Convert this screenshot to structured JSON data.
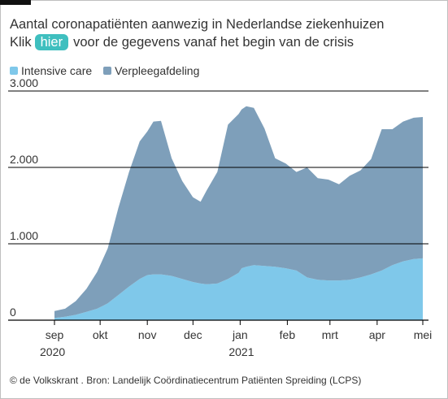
{
  "header": {
    "title": "Aantal coronapatiënten aanwezig in Nederlandse ziekenhuizen",
    "subtitle_before": "Klik",
    "link_label": "hier",
    "subtitle_after": "voor de gegevens vanaf het begin van de crisis"
  },
  "source": "© de Volkskrant . Bron: Landelijk Coördinatiecentrum Patiënten Spreiding (LCPS)",
  "colors": {
    "icu": "#7fc8ea",
    "ward": "#7e9fba",
    "link_pill": "#3fbfbf",
    "text": "#333333",
    "gridline": "#000000"
  },
  "chart_data": {
    "type": "area",
    "stacked": true,
    "title": "Aantal coronapatiënten aanwezig in Nederlandse ziekenhuizen",
    "xlabel": "",
    "ylabel": "",
    "ylim": [
      0,
      3000
    ],
    "yticks": [
      {
        "value": 0,
        "label": "0"
      },
      {
        "value": 1000,
        "label": "1.000"
      },
      {
        "value": 2000,
        "label": "2.000"
      },
      {
        "value": 3000,
        "label": "3.000"
      }
    ],
    "xlim": [
      "2020-09-01",
      "2021-05-01"
    ],
    "xticks": [
      {
        "date": "2020-09-01",
        "label": "sep",
        "sublabel": "2020"
      },
      {
        "date": "2020-10-01",
        "label": "okt",
        "sublabel": ""
      },
      {
        "date": "2020-11-01",
        "label": "nov",
        "sublabel": ""
      },
      {
        "date": "2020-12-01",
        "label": "dec",
        "sublabel": ""
      },
      {
        "date": "2021-01-01",
        "label": "jan",
        "sublabel": "2021"
      },
      {
        "date": "2021-02-01",
        "label": "feb",
        "sublabel": ""
      },
      {
        "date": "2021-03-01",
        "label": "mrt",
        "sublabel": ""
      },
      {
        "date": "2021-04-01",
        "label": "apr",
        "sublabel": ""
      },
      {
        "date": "2021-05-01",
        "label": "mei",
        "sublabel": ""
      }
    ],
    "grid": true,
    "legend_position": "top-left",
    "x": [
      "2020-09-01",
      "2020-09-08",
      "2020-09-15",
      "2020-09-22",
      "2020-09-29",
      "2020-10-06",
      "2020-10-13",
      "2020-10-20",
      "2020-10-27",
      "2020-11-01",
      "2020-11-05",
      "2020-11-10",
      "2020-11-17",
      "2020-11-24",
      "2020-12-01",
      "2020-12-06",
      "2020-12-10",
      "2020-12-17",
      "2020-12-24",
      "2020-12-31",
      "2021-01-02",
      "2021-01-05",
      "2021-01-10",
      "2021-01-17",
      "2021-01-24",
      "2021-01-31",
      "2021-02-07",
      "2021-02-14",
      "2021-02-21",
      "2021-02-28",
      "2021-03-07",
      "2021-03-14",
      "2021-03-21",
      "2021-03-28",
      "2021-04-04",
      "2021-04-11",
      "2021-04-18",
      "2021-04-25",
      "2021-05-01"
    ],
    "series": [
      {
        "name": "Intensive care",
        "color": "#7fc8ea",
        "values": [
          30,
          45,
          70,
          110,
          150,
          220,
          330,
          440,
          540,
          590,
          600,
          600,
          580,
          540,
          500,
          480,
          470,
          480,
          540,
          620,
          680,
          700,
          720,
          710,
          700,
          680,
          650,
          560,
          530,
          520,
          520,
          530,
          560,
          600,
          650,
          720,
          770,
          800,
          810
        ]
      },
      {
        "name": "Verpleegafdeling",
        "color": "#7e9fba",
        "values": [
          90,
          105,
          180,
          300,
          480,
          720,
          1140,
          1500,
          1800,
          1880,
          2000,
          2010,
          1540,
          1280,
          1110,
          1070,
          1230,
          1460,
          2020,
          2080,
          2080,
          2100,
          2060,
          1800,
          1420,
          1370,
          1290,
          1440,
          1330,
          1320,
          1260,
          1360,
          1400,
          1510,
          1850,
          1780,
          1830,
          1850,
          1850
        ]
      }
    ]
  }
}
